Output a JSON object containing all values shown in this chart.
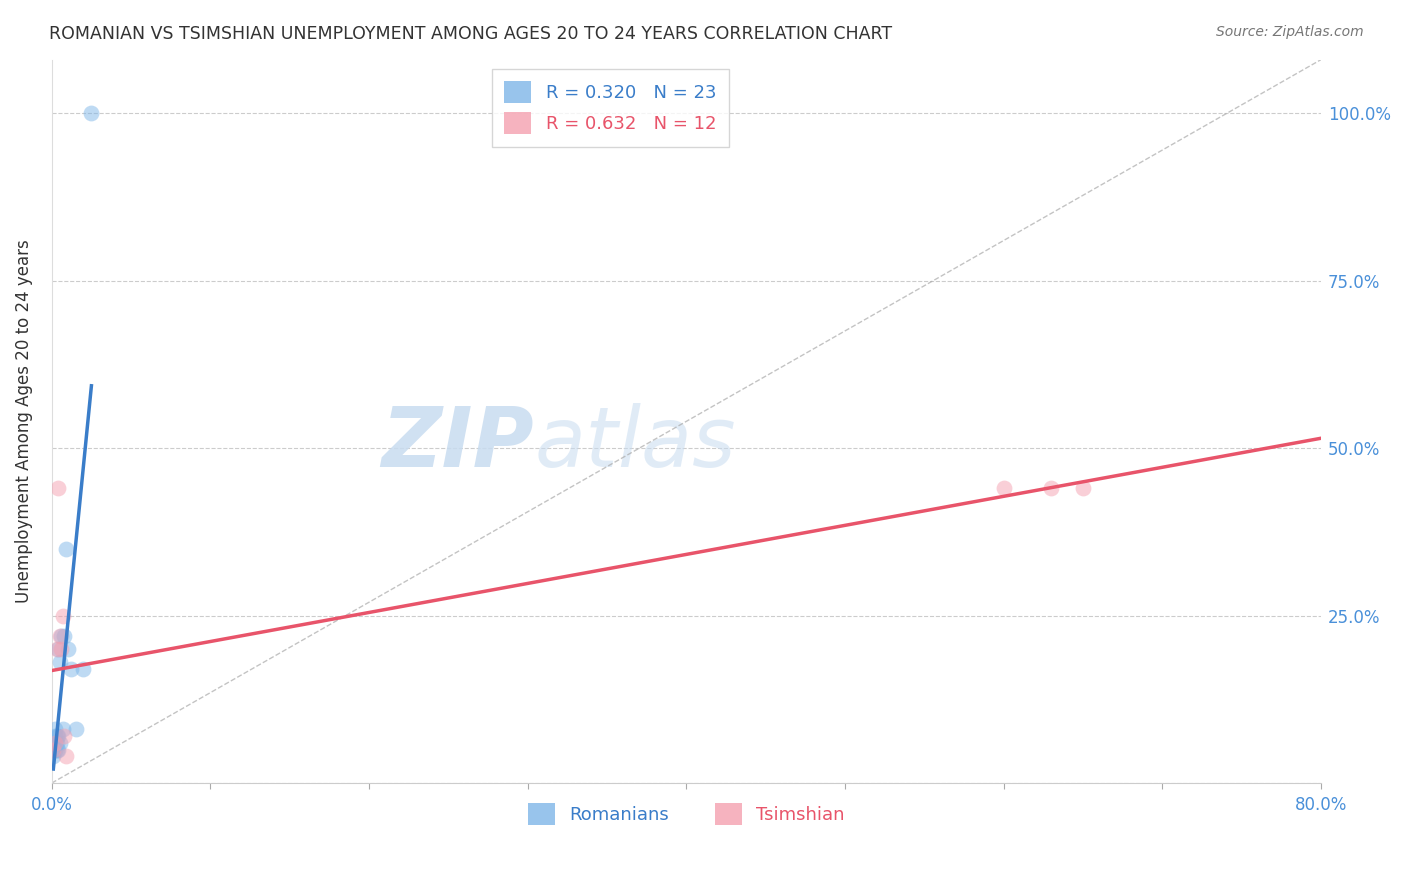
{
  "title": "ROMANIAN VS TSIMSHIAN UNEMPLOYMENT AMONG AGES 20 TO 24 YEARS CORRELATION CHART",
  "source": "Source: ZipAtlas.com",
  "ylabel": "Unemployment Among Ages 20 to 24 years",
  "xlim": [
    0.0,
    0.8
  ],
  "ylim": [
    0.0,
    1.08
  ],
  "yticks": [
    0.0,
    0.25,
    0.5,
    0.75,
    1.0
  ],
  "ytick_labels_right": [
    "",
    "25.0%",
    "50.0%",
    "75.0%",
    "100.0%"
  ],
  "xticks": [
    0.0,
    0.1,
    0.2,
    0.3,
    0.4,
    0.5,
    0.6,
    0.7,
    0.8
  ],
  "xtick_labels": [
    "0.0%",
    "",
    "",
    "",
    "",
    "",
    "",
    "",
    "80.0%"
  ],
  "romanian_x": [
    0.001,
    0.001,
    0.002,
    0.002,
    0.002,
    0.002,
    0.003,
    0.003,
    0.003,
    0.004,
    0.004,
    0.004,
    0.005,
    0.005,
    0.006,
    0.007,
    0.008,
    0.009,
    0.01,
    0.012,
    0.015,
    0.02,
    0.025
  ],
  "romanian_y": [
    0.04,
    0.05,
    0.05,
    0.06,
    0.07,
    0.08,
    0.05,
    0.06,
    0.07,
    0.05,
    0.07,
    0.2,
    0.06,
    0.18,
    0.22,
    0.08,
    0.22,
    0.35,
    0.2,
    0.17,
    0.08,
    0.17,
    1.0
  ],
  "tsimshian_x": [
    0.001,
    0.002,
    0.003,
    0.004,
    0.005,
    0.006,
    0.007,
    0.008,
    0.009,
    0.6,
    0.63,
    0.65
  ],
  "tsimshian_y": [
    0.05,
    0.06,
    0.2,
    0.44,
    0.22,
    0.2,
    0.25,
    0.07,
    0.04,
    0.44,
    0.44,
    0.44
  ],
  "romanian_color": "#7EB6E8",
  "tsimshian_color": "#F4A0B0",
  "romanian_line_color": "#3A7DC9",
  "tsimshian_line_color": "#E8546A",
  "marker_size": 130,
  "marker_alpha": 0.5,
  "legend_r_romanian": "0.320",
  "legend_n_romanian": "23",
  "legend_r_tsimshian": "0.632",
  "legend_n_tsimshian": "12",
  "bg_color": "#FFFFFF",
  "axis_color": "#4A90D9",
  "grid_color": "#CCCCCC",
  "title_color": "#333333",
  "source_color": "#777777",
  "watermark_zip": "ZIP",
  "watermark_atlas": "atlas",
  "watermark_color_zip": "#C8DCF0",
  "watermark_color_atlas": "#C8DCF0",
  "diag_line_color": "#AAAAAA",
  "diag_line_alpha": 0.7
}
